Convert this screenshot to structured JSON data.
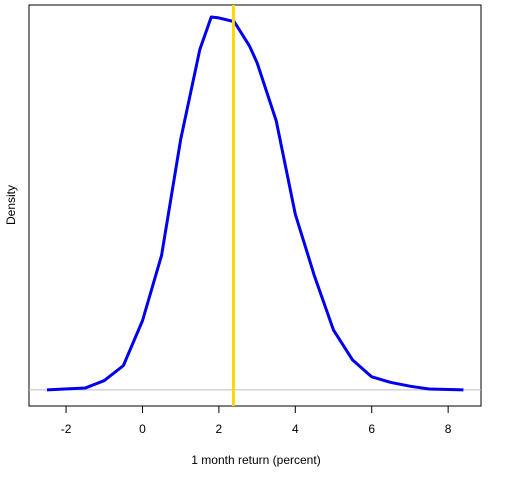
{
  "chart_data": {
    "type": "line",
    "xlabel": "1 month return (percent)",
    "ylabel": "Density",
    "x": [
      -2.5,
      -1.5,
      -1,
      -0.5,
      0,
      0.5,
      1,
      1.5,
      1.8,
      2,
      2.4,
      2.8,
      3,
      3.5,
      4,
      4.5,
      5,
      5.5,
      6,
      6.5,
      7,
      7.5,
      8.4
    ],
    "series": [
      {
        "color": "#0000ee",
        "values": [
          0,
          0.001,
          0.005,
          0.013,
          0.037,
          0.072,
          0.134,
          0.182,
          0.1995,
          0.199,
          0.197,
          0.184,
          0.175,
          0.144,
          0.094,
          0.061,
          0.032,
          0.016,
          0.007,
          0.004,
          0.002,
          0.0005,
          0
        ]
      }
    ],
    "xlim": [
      -2.97,
      8.86
    ],
    "xticks": [
      -2,
      0,
      2,
      4,
      6,
      8
    ],
    "ylim": [
      -0.0086,
      0.2059
    ],
    "vline": 2.38,
    "vline_color": "#ffd700",
    "hline": 0,
    "hline_color": "#bebebe"
  }
}
